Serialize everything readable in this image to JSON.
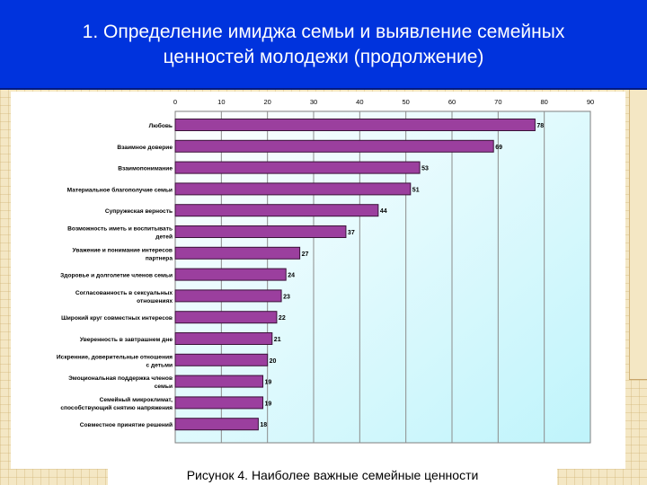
{
  "slide": {
    "title_line1": "1. Определение имиджа семьи и выявление семейных",
    "title_line2": "ценностей молодежи (продолжение)",
    "caption": "Рисунок 4. Наиболее важные семейные ценности"
  },
  "colors": {
    "header": "#0033dd",
    "bar": "#9b3f9e",
    "bar_edge": "#3a1238",
    "plot_top": "#ffffff",
    "plot_bottom": "#bff4fb"
  },
  "chart_data": {
    "type": "bar",
    "orientation": "horizontal",
    "xlim": [
      0,
      90
    ],
    "x_ticks": [
      0,
      10,
      20,
      30,
      40,
      50,
      60,
      70,
      80,
      90
    ],
    "grid": true,
    "categories": [
      [
        "Любовь"
      ],
      [
        "Взаимное доверие"
      ],
      [
        "Взаимопонимание"
      ],
      [
        "Материальное благополучие семьи"
      ],
      [
        "Супружеская верность"
      ],
      [
        "Возможность иметь и воспитывать",
        "детей"
      ],
      [
        "Уважение и понимание интересов",
        "партнера"
      ],
      [
        "Здоровье и долголетие  членов семьи"
      ],
      [
        "Согласованность в сексуальных",
        "отношениях"
      ],
      [
        "Широкий круг совместных интересов"
      ],
      [
        "Уверенность в завтрашнем дне"
      ],
      [
        "Искренние, доверительные отношения",
        "с детьми"
      ],
      [
        "Эмоциональная поддержка членов",
        "семьи"
      ],
      [
        "Семейный микроклимат,",
        "способствующий снятию напряжения"
      ],
      [
        "Совместное принятие решений"
      ]
    ],
    "values": [
      78,
      69,
      53,
      51,
      44,
      37,
      27,
      24,
      23,
      22,
      21,
      20,
      19,
      19,
      18
    ]
  }
}
